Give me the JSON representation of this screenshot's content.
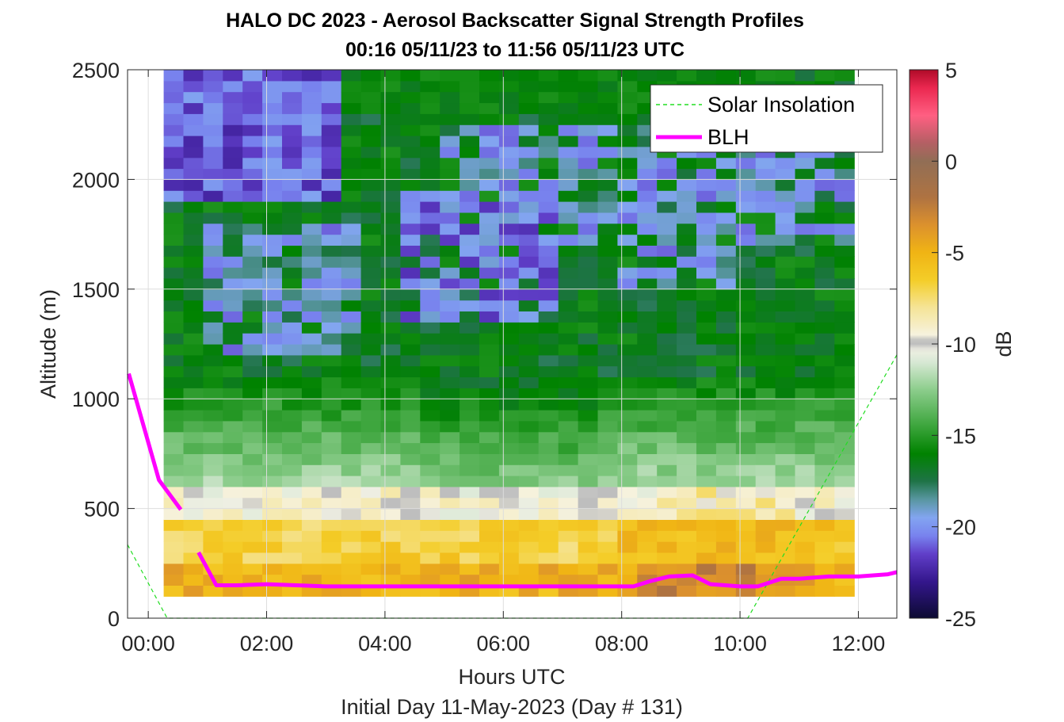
{
  "chart_data": {
    "type": "heatmap",
    "title": "HALO DC 2023 - Aerosol Backscatter Signal Strength Profiles",
    "subtitle": "00:16 05/11/23 to 11:56 05/11/23  UTC",
    "xlabel": "Hours UTC",
    "xlabel2": "Initial Day 11-May-2023 (Day # 131)",
    "ylabel": "Altitude (m)",
    "colorbar_label": "dB",
    "xlim": [
      -0.35,
      12.65
    ],
    "ylim": [
      0,
      2500
    ],
    "x_ticks": [
      0,
      2,
      4,
      6,
      8,
      10,
      12
    ],
    "x_tick_labels": [
      "00:00",
      "02:00",
      "04:00",
      "06:00",
      "08:00",
      "10:00",
      "12:00"
    ],
    "y_ticks": [
      0,
      500,
      1000,
      1500,
      2000,
      2500
    ],
    "y_tick_labels": [
      "0",
      "500",
      "1000",
      "1500",
      "2000",
      "2500"
    ],
    "clim": [
      -25,
      5
    ],
    "colorbar_ticks": [
      5,
      0,
      -5,
      -10,
      -15,
      -20,
      -25
    ],
    "colorbar_tick_labels": [
      "5",
      "0",
      "-5",
      "-10",
      "-15",
      "-20",
      "-25"
    ],
    "grid": true,
    "legend_location": "top-right",
    "heatmap_x_range_hours": [
      0.26,
      11.93
    ],
    "heatmap_altitude_range_m": [
      100,
      2500
    ],
    "heatmap_approx_db_layers": [
      {
        "altitude_m": [
          100,
          250
        ],
        "db": [
          -6,
          -2
        ],
        "note": "orange/brown near surface"
      },
      {
        "altitude_m": [
          250,
          450
        ],
        "db": [
          -8,
          -5
        ],
        "note": "yellow"
      },
      {
        "altitude_m": [
          450,
          600
        ],
        "db": [
          -11,
          -9
        ],
        "note": "cream/white"
      },
      {
        "altitude_m": [
          600,
          1100
        ],
        "db": [
          -15,
          -12
        ],
        "note": "light to medium green"
      },
      {
        "altitude_m": [
          1100,
          2500
        ],
        "db": [
          -23,
          -15
        ],
        "note": "green with blue/purple patches"
      }
    ],
    "series": [
      {
        "name": "Solar Insolation",
        "style": "dashed",
        "color": "#22dd22",
        "x": [
          -0.35,
          0.32,
          10.13,
          12.65
        ],
        "y": [
          335,
          0,
          0,
          1200
        ]
      },
      {
        "name": "BLH",
        "style": "solid",
        "color": "#ff00ff",
        "segments": [
          {
            "x": [
              -0.33,
              0.18,
              0.55
            ],
            "y": [
              1115,
              630,
              495
            ]
          },
          {
            "x": [
              0.85,
              1.15,
              1.5,
              2.0,
              2.5,
              3.0,
              4.0,
              5.0,
              6.0,
              7.0,
              8.0,
              8.2,
              8.5,
              8.8,
              9.2,
              9.5,
              10.0,
              10.3,
              10.7,
              11.0,
              11.5,
              12.0,
              12.5,
              12.65
            ],
            "y": [
              300,
              150,
              150,
              155,
              150,
              145,
              145,
              145,
              145,
              145,
              145,
              145,
              170,
              190,
              195,
              155,
              145,
              145,
              180,
              180,
              190,
              190,
              200,
              210
            ]
          }
        ]
      }
    ]
  }
}
